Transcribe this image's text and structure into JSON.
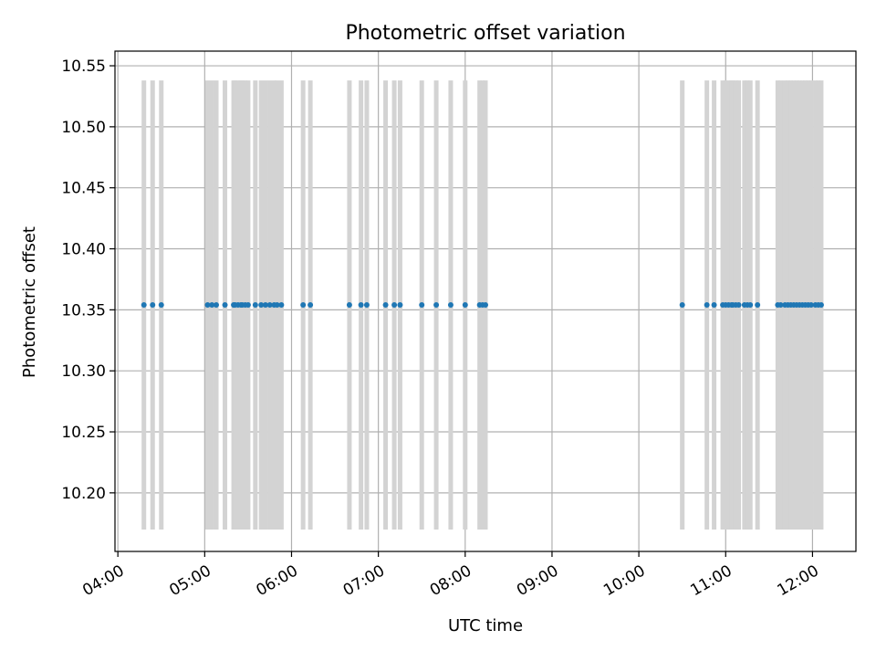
{
  "chart_data": {
    "type": "scatter",
    "title": "Photometric offset variation",
    "xlabel": "UTC time",
    "ylabel": "Photometric offset",
    "x_ticks": [
      "04:00",
      "05:00",
      "06:00",
      "07:00",
      "08:00",
      "09:00",
      "10:00",
      "11:00",
      "12:00"
    ],
    "y_ticks": [
      "10.20",
      "10.25",
      "10.30",
      "10.35",
      "10.40",
      "10.45",
      "10.50",
      "10.55"
    ],
    "xlim": [
      "03:58",
      "12:30"
    ],
    "ylim": [
      10.152,
      10.562
    ],
    "grid": true,
    "error_bar_range": [
      10.17,
      10.538
    ],
    "times": [
      "04:18",
      "04:24",
      "04:30",
      "05:02",
      "05:05",
      "05:08",
      "05:14",
      "05:20",
      "05:21",
      "05:23",
      "05:25",
      "05:26",
      "05:28",
      "05:30",
      "05:35",
      "05:39",
      "05:42",
      "05:45",
      "05:48",
      "05:50",
      "05:53",
      "06:08",
      "06:13",
      "06:40",
      "06:48",
      "06:52",
      "07:05",
      "07:11",
      "07:15",
      "07:30",
      "07:40",
      "07:50",
      "08:00",
      "08:10",
      "08:12",
      "08:14",
      "10:30",
      "10:47",
      "10:52",
      "10:58",
      "11:00",
      "11:02",
      "11:04",
      "11:05",
      "11:07",
      "11:09",
      "11:13",
      "11:15",
      "11:17",
      "11:22",
      "11:36",
      "11:38",
      "11:41",
      "11:43",
      "11:45",
      "11:47",
      "11:49",
      "11:51",
      "11:53",
      "11:55",
      "11:57",
      "11:59",
      "12:02",
      "12:04",
      "12:06"
    ],
    "values": [
      10.354,
      10.354,
      10.354,
      10.354,
      10.354,
      10.354,
      10.354,
      10.354,
      10.354,
      10.354,
      10.354,
      10.354,
      10.354,
      10.354,
      10.354,
      10.354,
      10.354,
      10.354,
      10.354,
      10.354,
      10.354,
      10.354,
      10.354,
      10.354,
      10.354,
      10.354,
      10.354,
      10.354,
      10.354,
      10.354,
      10.354,
      10.354,
      10.354,
      10.354,
      10.354,
      10.354,
      10.354,
      10.354,
      10.354,
      10.354,
      10.354,
      10.354,
      10.354,
      10.354,
      10.354,
      10.354,
      10.354,
      10.354,
      10.354,
      10.354,
      10.354,
      10.354,
      10.354,
      10.354,
      10.354,
      10.354,
      10.354,
      10.354,
      10.354,
      10.354,
      10.354,
      10.354,
      10.354,
      10.354,
      10.354
    ],
    "colors": {
      "points": "#1f77b4",
      "error_bars": "#d3d3d3",
      "grid": "#b0b0b0",
      "axes": "#000000"
    }
  }
}
